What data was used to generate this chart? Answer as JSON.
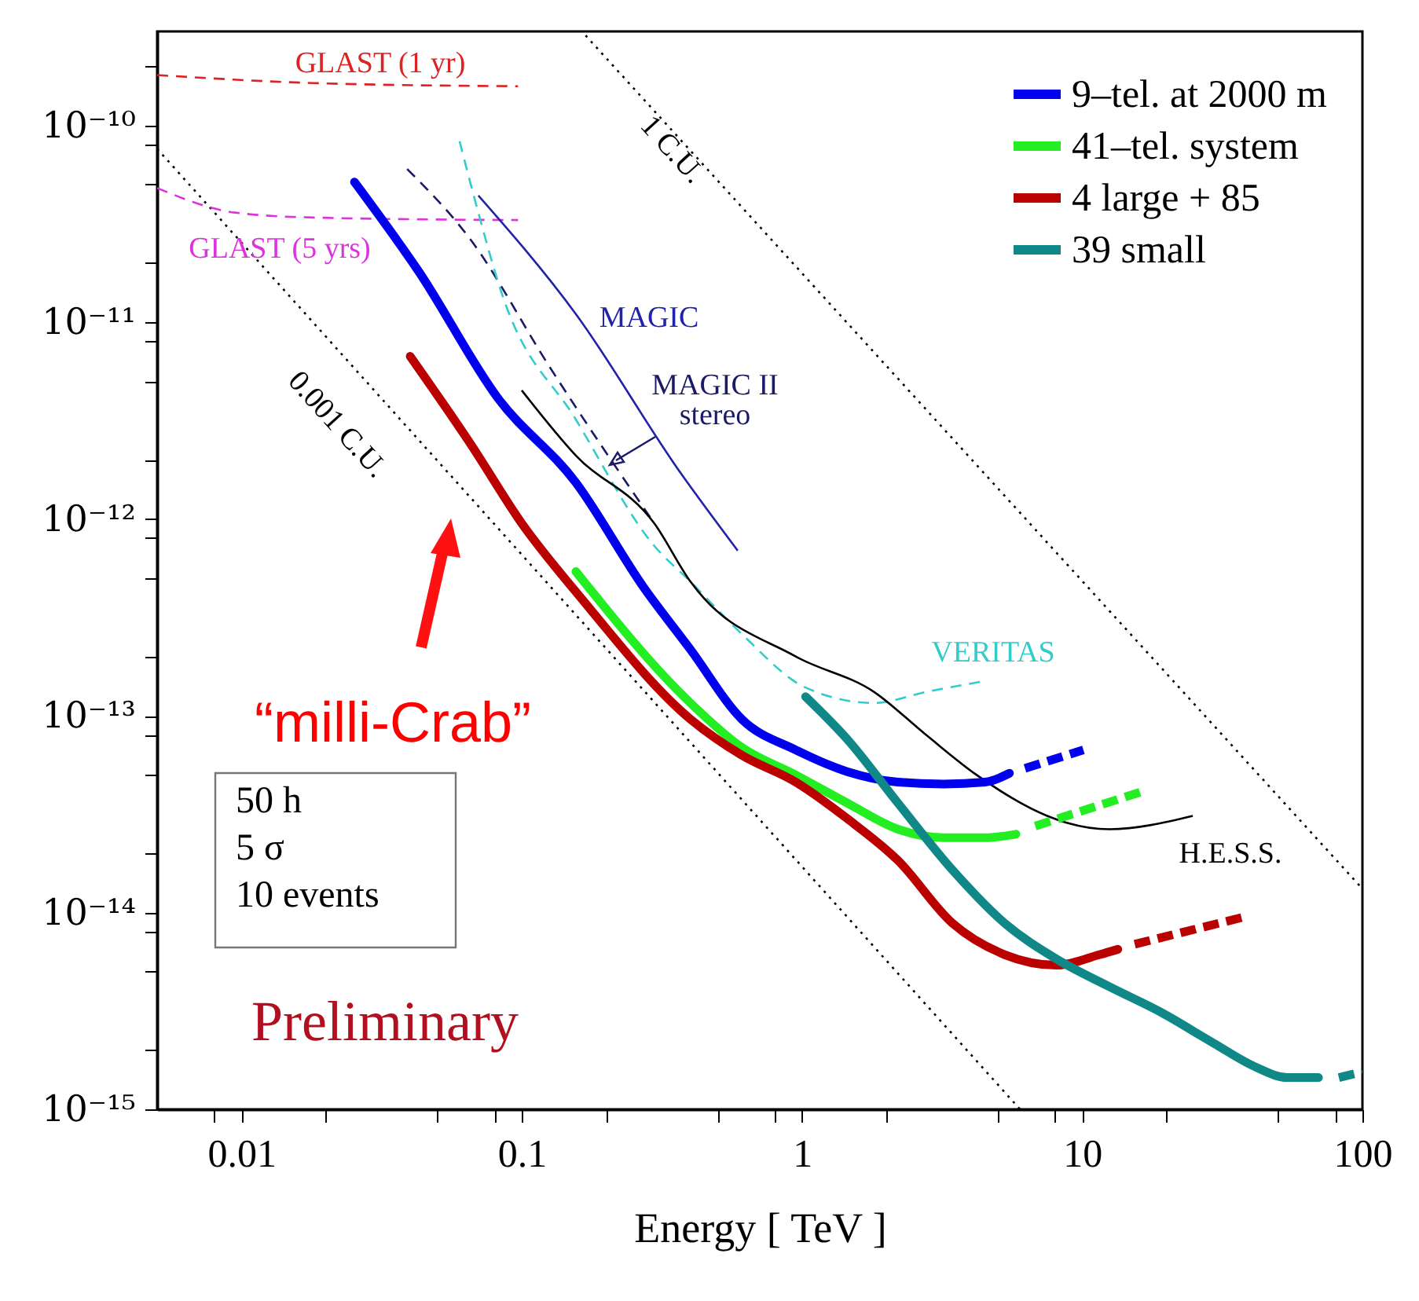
{
  "chart_data": {
    "type": "line",
    "xlabel": "Energy  [ TeV ]",
    "log": "xy",
    "legend": "top right",
    "xlim": [
      0.005,
      100
    ],
    "xticks": [
      {
        "value": 0.008,
        "label": null
      },
      0.01,
      {
        "value": 0.02,
        "label": null
      },
      {
        "value": 0.05,
        "label": null
      },
      {
        "value": 0.08,
        "label": null
      },
      0.1,
      {
        "value": 0.2,
        "label": null
      },
      {
        "value": 0.5,
        "label": null
      },
      {
        "value": 0.8,
        "label": null
      },
      1,
      {
        "value": 2,
        "label": null
      },
      {
        "value": 5,
        "label": null
      },
      {
        "value": 8,
        "label": null
      },
      10,
      {
        "value": 20,
        "label": null
      },
      {
        "value": 50,
        "label": null
      },
      {
        "value": 80,
        "label": null
      },
      100
    ],
    "ylim": [
      1e-15,
      3e-10
    ],
    "yticks": [
      {
        "value": 1e-15,
        "label": "10⁻¹⁵"
      },
      {
        "value": 2e-15,
        "label": null
      },
      {
        "value": 5e-15,
        "label": null
      },
      {
        "value": 8e-15,
        "label": null
      },
      {
        "value": 1e-14,
        "label": "10⁻¹⁴"
      },
      {
        "value": 2e-14,
        "label": null
      },
      {
        "value": 5e-14,
        "label": null
      },
      {
        "value": 8e-14,
        "label": null
      },
      {
        "value": 1e-13,
        "label": "10⁻¹³"
      },
      {
        "value": 2e-13,
        "label": null
      },
      {
        "value": 5e-13,
        "label": null
      },
      {
        "value": 8e-13,
        "label": null
      },
      {
        "value": 1e-12,
        "label": "10⁻¹²"
      },
      {
        "value": 2e-12,
        "label": null
      },
      {
        "value": 5e-12,
        "label": null
      },
      {
        "value": 8e-12,
        "label": null
      },
      {
        "value": 1e-11,
        "label": "10⁻¹¹"
      },
      {
        "value": 2e-11,
        "label": null
      },
      {
        "value": 5e-11,
        "label": null
      },
      {
        "value": 8e-11,
        "label": null
      },
      {
        "value": 1e-10,
        "label": "10⁻¹⁰"
      },
      {
        "value": 2e-10,
        "label": null
      }
    ],
    "series": [
      {
        "color": "#000000",
        "line_style": "dotted",
        "x": [
          0.169,
          100
        ],
        "values": [
          2.86e-10,
          1.32e-14
        ]
      },
      {
        "color": "#000000",
        "line_style": "dotted",
        "x": [
          0.005,
          6.0
        ],
        "values": [
          7.6e-11,
          1e-15
        ]
      },
      {
        "color": "#dd2222",
        "line_style": "dashed",
        "x": [
          0.005,
          0.018,
          0.097
        ],
        "values": [
          1.8e-10,
          1.64e-10,
          1.58e-10
        ]
      },
      {
        "color": "#dd33dd",
        "line_style": "dashed",
        "x": [
          0.005,
          0.0095,
          0.018,
          0.097
        ],
        "values": [
          4.8e-11,
          3.6e-11,
          3.4e-11,
          3.3e-11
        ]
      },
      {
        "color": "#2222aa",
        "x": [
          0.07,
          0.156,
          0.366,
          0.59
        ],
        "values": [
          4.4e-11,
          1.1e-11,
          1.74e-12,
          6.9e-13
        ]
      },
      {
        "color": "#1a1a66",
        "line_style": "dashed",
        "x": [
          0.039,
          0.066,
          0.125,
          0.297
        ],
        "values": [
          6e-11,
          2.6e-11,
          6e-12,
          9.5e-13
        ]
      },
      {
        "color": "#33cccc",
        "line_style": "dashed",
        "x": [
          0.06,
          0.068,
          0.085,
          0.156,
          0.297,
          0.4,
          0.61,
          1.03,
          1.81,
          2.77,
          4.5
        ],
        "values": [
          8.3e-11,
          4.2e-11,
          1.39e-11,
          3.2e-12,
          7.3e-13,
          4.8e-13,
          2.6e-13,
          1.39e-13,
          1.16e-13,
          1.32e-13,
          1.5e-13
        ]
      },
      {
        "color": "#000000",
        "x": [
          0.1,
          0.156,
          0.297,
          0.4,
          0.95,
          1.81,
          2.77,
          4.2,
          7.5,
          8.8,
          12.5,
          24.8
        ],
        "values": [
          4.5e-12,
          2.1e-12,
          9.5e-13,
          4.8e-13,
          2e-13,
          1.32e-13,
          8e-14,
          5e-14,
          3.1e-14,
          2.86e-14,
          2.65e-14,
          3.1e-14
        ]
      },
      {
        "color": "#0000ee",
        "line_style": "dashed",
        "x": [
          6.25,
          10.1
        ],
        "values": [
          5.4e-14,
          6.7e-14
        ]
      },
      {
        "color": "#22ee22",
        "line_style": "dashed",
        "x": [
          6.8,
          16.2
        ],
        "values": [
          2.75e-14,
          4.1e-14
        ]
      },
      {
        "color": "#bb0000",
        "line_style": "dashed",
        "x": [
          15.4,
          39
        ],
        "values": [
          6.9e-15,
          9.6e-15
        ]
      },
      {
        "color": "#118888",
        "line_style": "dashed",
        "x": [
          82.4,
          100
        ],
        "values": [
          1.45e-15,
          1.55e-15
        ]
      },
      {
        "name": "9–tel. at 2000 m",
        "color": "#0000ee",
        "x": [
          0.0253,
          0.043,
          0.082,
          0.156,
          0.272,
          0.4,
          0.61,
          0.95,
          1.45,
          2.2,
          3.2,
          4.5,
          5.5
        ],
        "values": [
          5.15e-11,
          1.8e-11,
          4.13e-12,
          1.53e-12,
          4.5e-13,
          2.17e-13,
          9.6e-14,
          6.7e-14,
          5.2e-14,
          4.6e-14,
          4.5e-14,
          4.6e-14,
          5.1e-14
        ]
      },
      {
        "name": "41–tel. system",
        "color": "#22ee22",
        "x": [
          0.156,
          0.4,
          0.61,
          0.95,
          1.45,
          2.2,
          3.2,
          4.5,
          5.8
        ],
        "values": [
          5.4e-13,
          1.16e-13,
          6.9e-14,
          5e-14,
          3.6e-14,
          2.65e-14,
          2.4e-14,
          2.4e-14,
          2.5e-14
        ]
      },
      {
        "name": "4 large + 85",
        "color": "#bb0000",
        "x": [
          0.04,
          0.066,
          0.1,
          0.162,
          0.4,
          0.61,
          0.95,
          1.45,
          2.2,
          3.45,
          5.3,
          8.1,
          11.5,
          13.4
        ],
        "values": [
          6.7e-12,
          2.38e-12,
          9.5e-13,
          4e-13,
          9.6e-14,
          6.3e-14,
          4.6e-14,
          3e-14,
          1.84e-14,
          8.8e-15,
          6.1e-15,
          5.4e-15,
          6.1e-15,
          6.5e-15
        ]
      },
      {
        "name": "39 small",
        "color": "#118888",
        "x": [
          1.03,
          1.45,
          2.2,
          3.45,
          5.3,
          8.1,
          12.5,
          19.2,
          29.4,
          41.6,
          53.8,
          69.7
        ],
        "values": [
          1.25e-13,
          7.6e-14,
          3.6e-14,
          1.64e-14,
          8.8e-15,
          5.8e-15,
          4.2e-15,
          3.1e-15,
          2.17e-15,
          1.64e-15,
          1.45e-15,
          1.45e-15
        ]
      }
    ],
    "annotations": [
      "GLAST (1 yr)",
      "GLAST (5 yrs)",
      "MAGIC",
      "MAGIC II\nstereo",
      "VERITAS",
      "H.E.S.S.",
      "1 C.U.",
      "0.001 C.U.",
      "50 h\n5 σ\n10 events",
      "Preliminary",
      "“milli-Crab”"
    ]
  }
}
